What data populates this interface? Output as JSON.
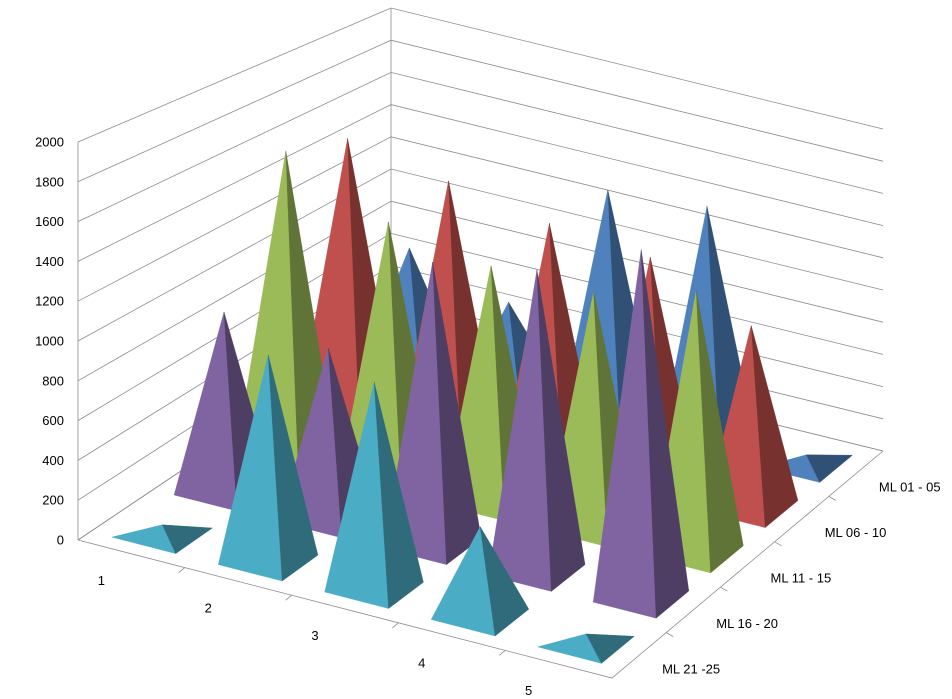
{
  "chart_data": {
    "type": "3d-pyramid-column",
    "title": "",
    "xlabel": "",
    "ylabel": "",
    "zlim": [
      0,
      2000
    ],
    "z_ticks": [
      "0",
      "200",
      "400",
      "600",
      "800",
      "1000",
      "1200",
      "1400",
      "1600",
      "1800",
      "2000"
    ],
    "categories": [
      "1",
      "2",
      "3",
      "4",
      "5"
    ],
    "grid": true,
    "series": [
      {
        "name": "ML 01 - 05",
        "color": "#4f81bd",
        "values": [
          700,
          520,
          1350,
          1400,
          40
        ]
      },
      {
        "name": "ML 06 - 10",
        "color": "#c0504d",
        "values": [
          1550,
          1450,
          1350,
          1300,
          1050
        ]
      },
      {
        "name": "ML 11 - 15",
        "color": "#9bbb59",
        "values": [
          1650,
          1400,
          1300,
          1300,
          1450
        ]
      },
      {
        "name": "ML 16 - 20",
        "color": "#8064a2",
        "values": [
          950,
          900,
          1500,
          1600,
          1850
        ]
      },
      {
        "name": "ML 21 -25",
        "color": "#4bacc6",
        "values": [
          40,
          1050,
          1050,
          450,
          40
        ]
      }
    ]
  }
}
